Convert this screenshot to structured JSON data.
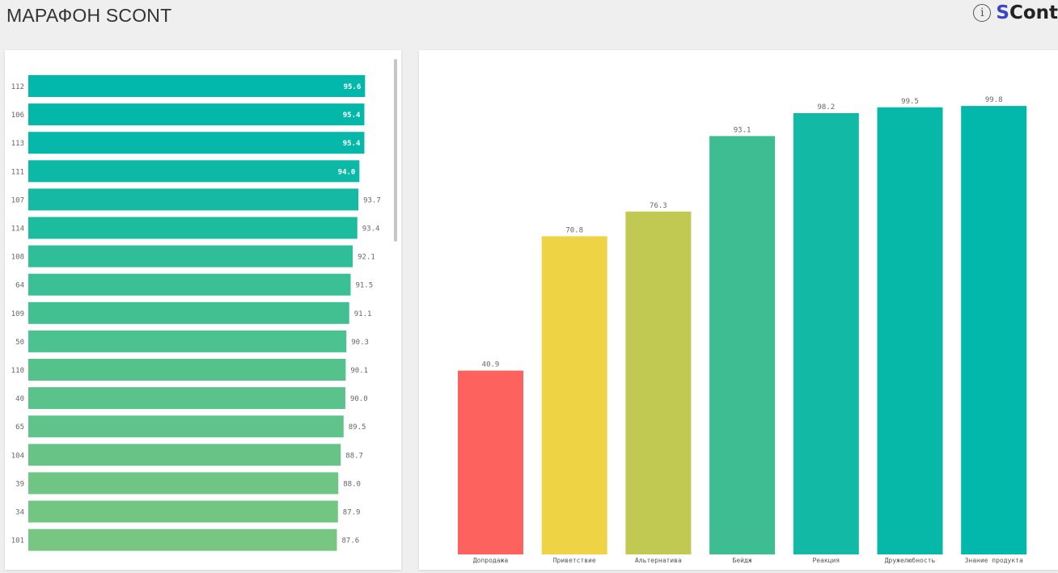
{
  "header": {
    "title": "МАРАФОН SCONT",
    "brand_s": "S",
    "brand_rest": "Cont",
    "info_icon": "info-icon"
  },
  "chart_data": [
    {
      "type": "bar",
      "orientation": "horizontal",
      "categories": [
        "112",
        "106",
        "113",
        "111",
        "107",
        "114",
        "108",
        "64",
        "109",
        "50",
        "110",
        "40",
        "65",
        "104",
        "39",
        "34",
        "101"
      ],
      "values": [
        95.6,
        95.4,
        95.4,
        94.0,
        93.7,
        93.4,
        92.1,
        91.5,
        91.1,
        90.3,
        90.1,
        90.0,
        89.5,
        88.7,
        88.0,
        87.9,
        87.6
      ],
      "labels": [
        "95.6",
        "95.4",
        "95.4",
        "94.0",
        "93.7",
        "93.4",
        "92.1",
        "91.5",
        "91.1",
        "90.3",
        "90.1",
        "90.0",
        "89.5",
        "88.7",
        "88.0",
        "87.9",
        "87.6"
      ],
      "xlim": [
        0,
        100
      ],
      "colors": [
        "#01b8aa",
        "#04b8a9",
        "#05b8a9",
        "#0bb9a6",
        "#14bba2",
        "#1cbc9f",
        "#2fbe98",
        "#3bc095",
        "#43c092",
        "#4bc290",
        "#55c28c",
        "#5ac38b",
        "#60c389",
        "#68c486",
        "#6ec584",
        "#73c682",
        "#77c681"
      ],
      "grid": false,
      "legend": "none"
    },
    {
      "type": "bar",
      "orientation": "vertical",
      "categories": [
        "Допродажа",
        "Приветствие",
        "Альтернатива",
        "Бейдж",
        "Реакция",
        "Дружелюбность",
        "Знание продукта"
      ],
      "values": [
        40.9,
        70.8,
        76.3,
        93.1,
        98.2,
        99.5,
        99.8
      ],
      "labels": [
        "40.9",
        "70.8",
        "76.3",
        "93.1",
        "98.2",
        "99.5",
        "99.8"
      ],
      "ylim": [
        0,
        100
      ],
      "colors": [
        "#fd625e",
        "#eed445",
        "#c2c953",
        "#3dbd91",
        "#12b9a4",
        "#06b8a8",
        "#01b8aa"
      ],
      "grid": false,
      "legend": "none"
    }
  ]
}
